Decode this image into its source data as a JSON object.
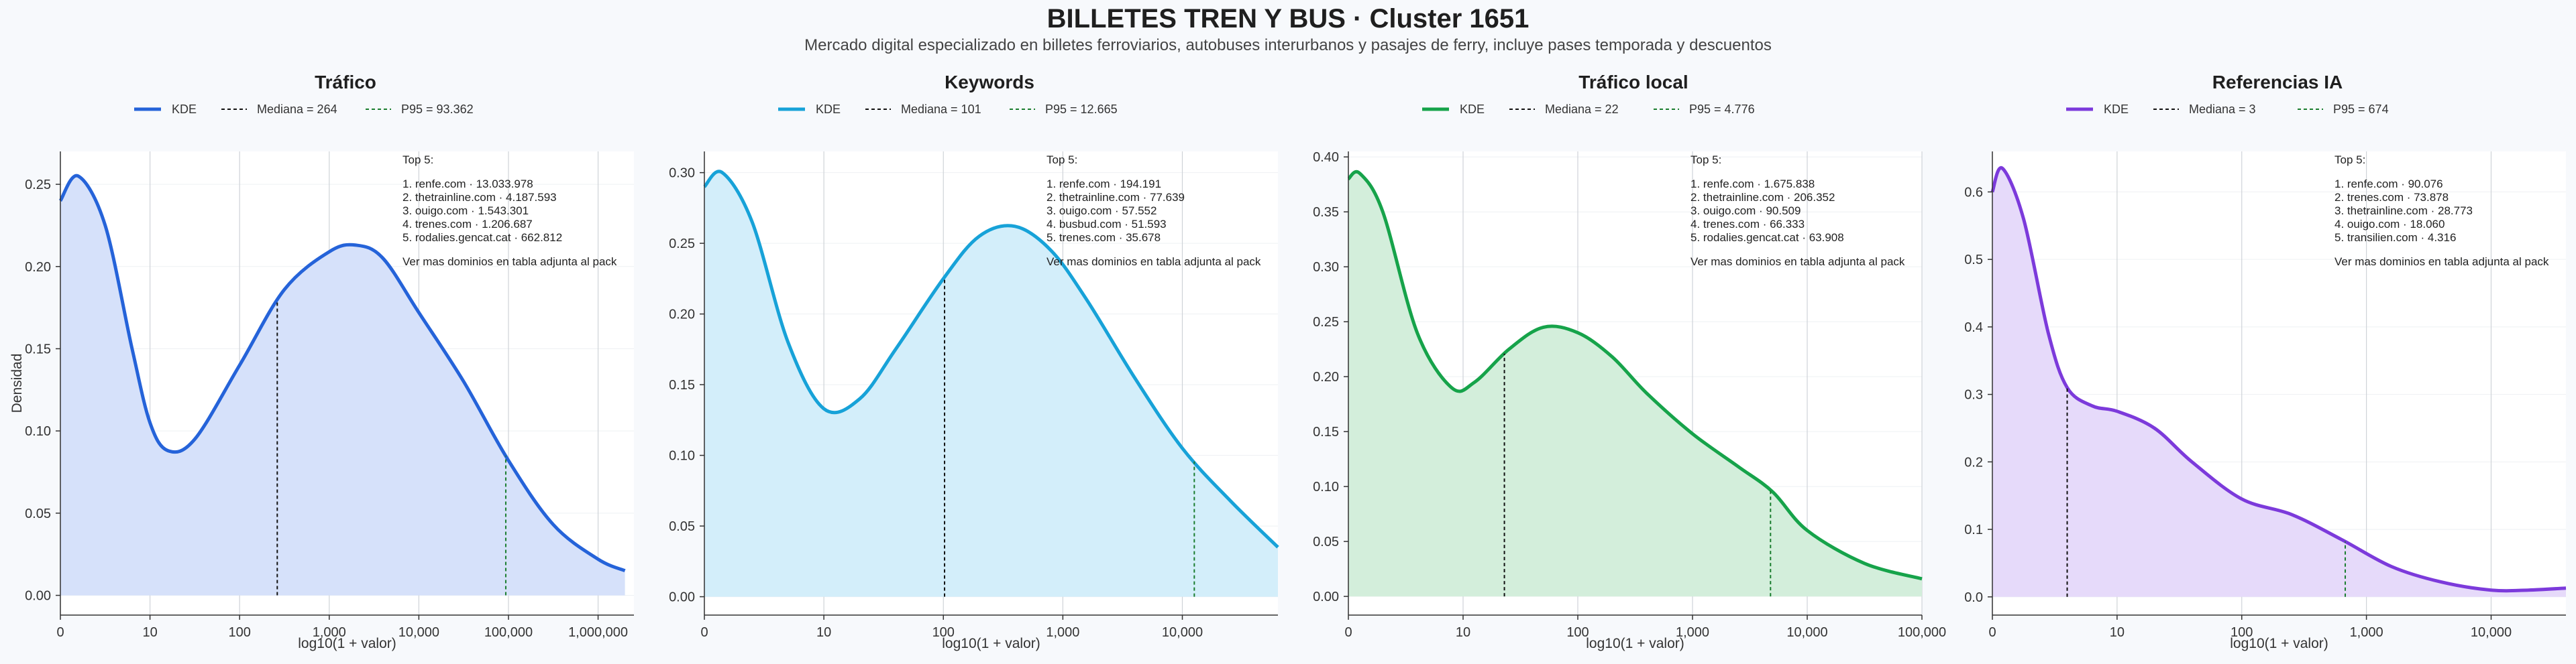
{
  "title": "BILLETES TREN Y BUS · Cluster 1651",
  "subtitle": "Mercado digital especializado en billetes ferroviarios, autobuses interurbanos y pasajes de ferry, incluye pases temporada y descuentos",
  "chart_data": [
    {
      "type": "area",
      "title": "Tráfico",
      "color": "#2563d9",
      "fill": "#d6e1fa",
      "xlabel": "log10(1 + valor)",
      "ylabel": "Densidad",
      "xlim": [
        0,
        6.4
      ],
      "ylim": [
        -0.012,
        0.27
      ],
      "xticks": [
        0,
        1,
        2,
        3,
        4,
        5,
        6
      ],
      "xtick_labels": [
        "0",
        "10",
        "100",
        "1,000",
        "10,000",
        "100,000",
        "1,000,000"
      ],
      "yticks": [
        0,
        0.05,
        0.1,
        0.15,
        0.2,
        0.25
      ],
      "ytick_labels": [
        "0.00",
        "0.05",
        "0.10",
        "0.15",
        "0.20",
        "0.25"
      ],
      "legend": {
        "kde": "KDE",
        "median": "Mediana = 264",
        "p95": "P95 = 93.362"
      },
      "median_x": 2.42,
      "p95_x": 4.97,
      "x": [
        0,
        0.2,
        0.5,
        0.8,
        1.0,
        1.2,
        1.5,
        2.0,
        2.5,
        3.0,
        3.3,
        3.6,
        4.0,
        4.5,
        5.0,
        5.5,
        6.0,
        6.3
      ],
      "y": [
        0.24,
        0.255,
        0.225,
        0.15,
        0.105,
        0.088,
        0.095,
        0.14,
        0.186,
        0.209,
        0.213,
        0.205,
        0.172,
        0.13,
        0.082,
        0.043,
        0.022,
        0.015
      ],
      "top_title": "Top 5:",
      "top": [
        "1. renfe.com · 13.033.978",
        "2. thetrainline.com · 4.187.593",
        "3. ouigo.com · 1.543.301",
        "4. trenes.com · 1.206.687",
        "5. rodalies.gencat.cat · 662.812"
      ],
      "top_note": "Ver mas dominios en tabla adjunta al pack"
    },
    {
      "type": "area",
      "title": "Keywords",
      "color": "#17a2d8",
      "fill": "#d3eefa",
      "xlabel": "log10(1 + valor)",
      "ylabel": "",
      "xlim": [
        0,
        4.8
      ],
      "ylim": [
        -0.013,
        0.315
      ],
      "xticks": [
        0,
        1,
        2,
        3,
        4
      ],
      "xtick_labels": [
        "0",
        "10",
        "100",
        "1,000",
        "10,000"
      ],
      "yticks": [
        0,
        0.05,
        0.1,
        0.15,
        0.2,
        0.25,
        0.3
      ],
      "ytick_labels": [
        "0.00",
        "0.05",
        "0.10",
        "0.15",
        "0.20",
        "0.25",
        "0.30"
      ],
      "legend": {
        "kde": "KDE",
        "median": "Mediana = 101",
        "p95": "P95 = 12.665"
      },
      "median_x": 2.01,
      "p95_x": 4.1,
      "x": [
        0,
        0.15,
        0.4,
        0.7,
        1.0,
        1.3,
        1.6,
        2.0,
        2.3,
        2.6,
        2.9,
        3.2,
        3.6,
        4.0,
        4.4,
        4.8
      ],
      "y": [
        0.29,
        0.3,
        0.265,
        0.18,
        0.133,
        0.14,
        0.175,
        0.225,
        0.255,
        0.262,
        0.245,
        0.21,
        0.155,
        0.105,
        0.068,
        0.035
      ],
      "top_title": "Top 5:",
      "top": [
        "1. renfe.com · 194.191",
        "2. thetrainline.com · 77.639",
        "3. ouigo.com · 57.552",
        "4. busbud.com · 51.593",
        "5. trenes.com · 35.678"
      ],
      "top_note": "Ver mas dominios en tabla adjunta al pack"
    },
    {
      "type": "area",
      "title": "Tráfico local",
      "color": "#16a34a",
      "fill": "#d3eedb",
      "xlabel": "log10(1 + valor)",
      "ylabel": "",
      "xlim": [
        0,
        5.0
      ],
      "ylim": [
        -0.017,
        0.405
      ],
      "xticks": [
        0,
        1,
        2,
        3,
        4,
        5
      ],
      "xtick_labels": [
        "0",
        "10",
        "100",
        "1,000",
        "10,000",
        "100,000"
      ],
      "yticks": [
        0,
        0.05,
        0.1,
        0.15,
        0.2,
        0.25,
        0.3,
        0.35,
        0.4
      ],
      "ytick_labels": [
        "0.00",
        "0.05",
        "0.10",
        "0.15",
        "0.20",
        "0.25",
        "0.30",
        "0.35",
        "0.40"
      ],
      "legend": {
        "kde": "KDE",
        "median": "Mediana = 22",
        "p95": "P95 = 4.776"
      },
      "median_x": 1.36,
      "p95_x": 3.68,
      "x": [
        0,
        0.1,
        0.3,
        0.6,
        0.9,
        1.1,
        1.4,
        1.7,
        2.0,
        2.3,
        2.6,
        3.0,
        3.4,
        3.7,
        4.0,
        4.5,
        5.0
      ],
      "y": [
        0.38,
        0.385,
        0.35,
        0.24,
        0.19,
        0.195,
        0.225,
        0.245,
        0.24,
        0.218,
        0.185,
        0.148,
        0.118,
        0.095,
        0.06,
        0.03,
        0.016
      ],
      "top_title": "Top 5:",
      "top": [
        "1. renfe.com · 1.675.838",
        "2. thetrainline.com · 206.352",
        "3. ouigo.com · 90.509",
        "4. trenes.com · 66.333",
        "5. rodalies.gencat.cat · 63.908"
      ],
      "top_note": "Ver mas dominios en tabla adjunta al pack"
    },
    {
      "type": "area",
      "title": "Referencias IA",
      "color": "#7c3adb",
      "fill": "#e6dafa",
      "xlabel": "log10(1 + valor)",
      "ylabel": "",
      "xlim": [
        0,
        4.6
      ],
      "ylim": [
        -0.027,
        0.66
      ],
      "xticks": [
        0,
        1,
        2,
        3,
        4
      ],
      "xtick_labels": [
        "0",
        "10",
        "100",
        "1,000",
        "10,000"
      ],
      "yticks": [
        0,
        0.1,
        0.2,
        0.3,
        0.4,
        0.5,
        0.6
      ],
      "ytick_labels": [
        "0.0",
        "0.1",
        "0.2",
        "0.3",
        "0.4",
        "0.5",
        "0.6"
      ],
      "legend": {
        "kde": "KDE",
        "median": "Mediana = 3",
        "p95": "P95 = 674"
      },
      "median_x": 0.6,
      "p95_x": 2.83,
      "x": [
        0,
        0.08,
        0.25,
        0.45,
        0.6,
        0.8,
        1.0,
        1.3,
        1.6,
        2.0,
        2.4,
        2.8,
        3.2,
        3.6,
        4.0,
        4.3,
        4.6
      ],
      "y": [
        0.6,
        0.635,
        0.56,
        0.39,
        0.31,
        0.283,
        0.275,
        0.25,
        0.2,
        0.145,
        0.122,
        0.085,
        0.045,
        0.022,
        0.01,
        0.01,
        0.013
      ],
      "top_title": "Top 5:",
      "top": [
        "1. renfe.com · 90.076",
        "2. trenes.com · 73.878",
        "3. thetrainline.com · 28.773",
        "4. ouigo.com · 18.060",
        "5. transilien.com · 4.316"
      ],
      "top_note": "Ver mas dominios en tabla adjunta al pack"
    }
  ]
}
